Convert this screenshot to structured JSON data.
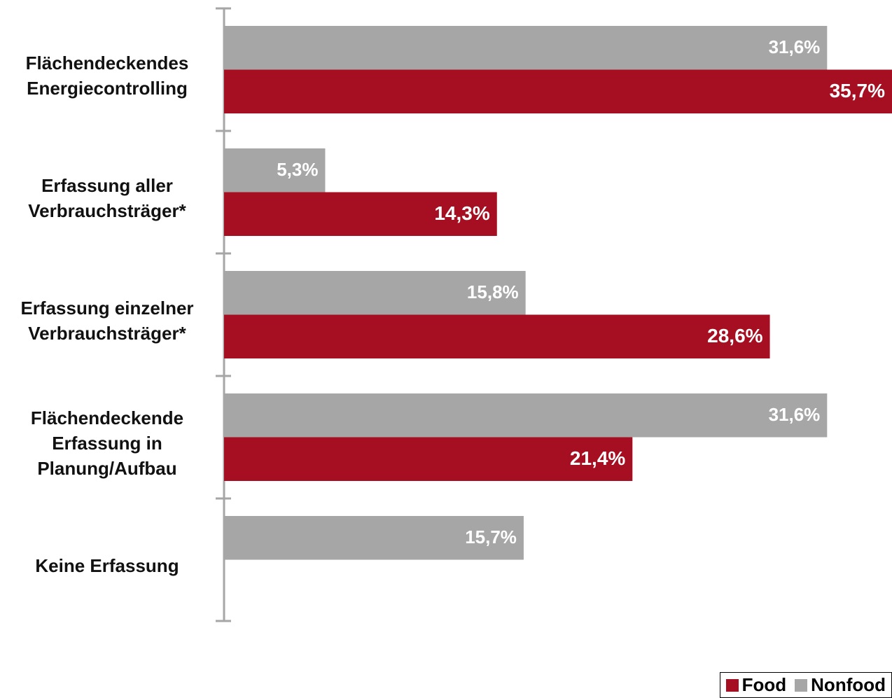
{
  "chart_data": {
    "type": "bar",
    "orientation": "horizontal",
    "categories": [
      "Flächendeckendes\nEnergiecontrolling",
      "Erfassung aller\nVerbrauchsträger*",
      "Erfassung einzelner\nVerbrauchsträger*",
      "Flächendeckende\nErfassung in\nPlanung/Aufbau",
      "Keine Erfassung"
    ],
    "series": [
      {
        "name": "Nonfood",
        "color": "#a6a6a6",
        "values": [
          31.6,
          5.3,
          15.8,
          31.6,
          15.7
        ],
        "value_labels": [
          "31,6%",
          "5,3%",
          "15,8%",
          "31,6%",
          "15,7%"
        ]
      },
      {
        "name": "Food",
        "color": "#a50f21",
        "values": [
          35.7,
          14.3,
          28.6,
          21.4,
          null
        ],
        "value_labels": [
          "35,7%",
          "14,3%",
          "28,6%",
          "21,4%",
          null
        ]
      }
    ],
    "xlim": [
      0,
      35
    ],
    "legend": "bottom-right"
  }
}
